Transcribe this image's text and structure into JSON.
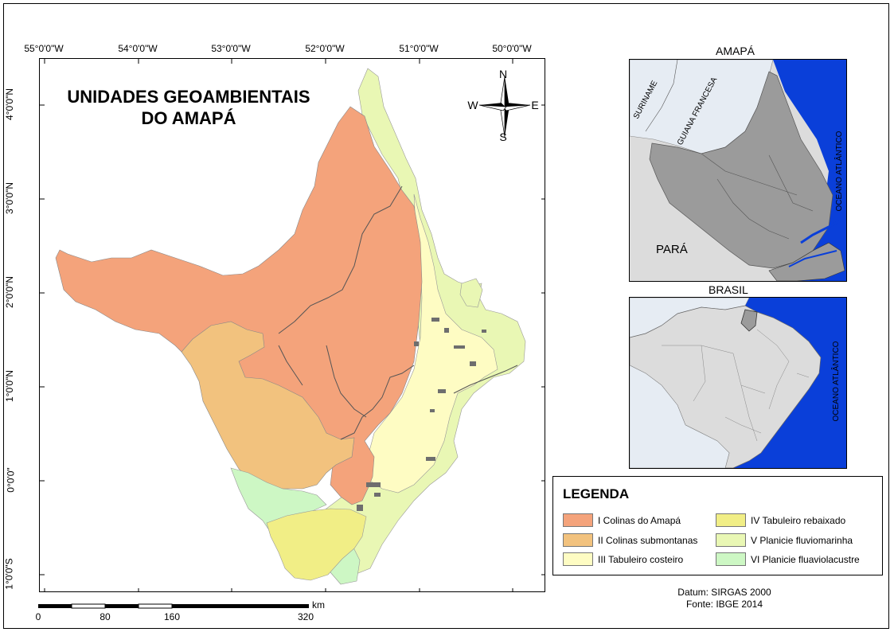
{
  "title": {
    "line1": "UNIDADES GEOAMBIENTAIS",
    "line2": "DO AMAPÁ"
  },
  "grid": {
    "longitudes": [
      "55°0'0\"W",
      "54°0'0\"W",
      "53°0'0\"W",
      "52°0'0\"W",
      "51°0'0\"W",
      "50°0'0\"W"
    ],
    "latitudes": [
      "4°0'0\"N",
      "3°0'0\"N",
      "2°0'0\"N",
      "1°0'0\"N",
      "0°0'0\"",
      "1°0'0\"S"
    ]
  },
  "compass": {
    "n": "N",
    "s": "S",
    "e": "E",
    "w": "W"
  },
  "inset_amapa": {
    "title": "AMAPÁ",
    "labels": {
      "suriname": "SURINAME",
      "guiana": "GUIANA FRANCESA",
      "para": "PARÁ",
      "ocean": "OCEANO ATLÂNTICO"
    }
  },
  "inset_brasil": {
    "title": "BRASIL",
    "ocean": "OCEANO ATLÂNTICO"
  },
  "legend": {
    "title": "LEGENDA",
    "items": [
      {
        "label": "I Colinas do Amapá",
        "color": "#f4a37b"
      },
      {
        "label": "II Colinas submontanas",
        "color": "#f2c27e"
      },
      {
        "label": "III Tabuleiro costeiro",
        "color": "#fefcc3"
      },
      {
        "label": "IV Tabuleiro rebaixado",
        "color": "#f1ee86"
      },
      {
        "label": "V Planicie fluviomarinha",
        "color": "#e9f7b4"
      },
      {
        "label": "VI Planicie fluaviolacustre",
        "color": "#cdf7c4"
      }
    ]
  },
  "scale": {
    "labels": [
      "0",
      "80",
      "160",
      "320"
    ],
    "unit": "km"
  },
  "credits": {
    "datum": "Datum:  SIRGAS 2000",
    "source": "Fonte:  IBGE 2014"
  },
  "colors": {
    "ocean": "#0a3fd9",
    "region_gray": "#9b9b9b",
    "neighbor_light": "#e6ecf3",
    "land_light": "#dcdcdc"
  }
}
